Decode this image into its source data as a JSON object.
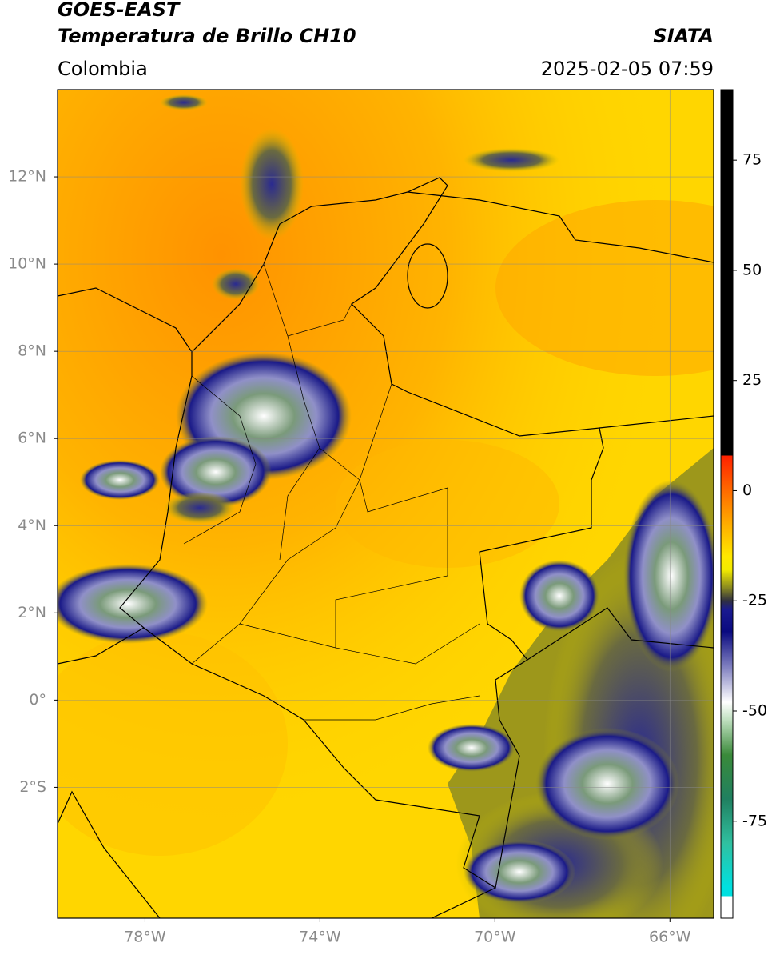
{
  "header": {
    "satellite": "GOES-EAST",
    "product": "Temperatura de Brillo CH10",
    "agency": "SIATA",
    "region": "Colombia",
    "timestamp": "2025-02-05 07:59"
  },
  "map": {
    "xlim": [
      -80,
      -65
    ],
    "ylim": [
      -5,
      14
    ],
    "xticks": [
      {
        "value": -78,
        "label": "78°W"
      },
      {
        "value": -74,
        "label": "74°W"
      },
      {
        "value": -70,
        "label": "70°W"
      },
      {
        "value": -66,
        "label": "66°W"
      }
    ],
    "yticks": [
      {
        "value": 12,
        "label": "12°N"
      },
      {
        "value": 10,
        "label": "10°N"
      },
      {
        "value": 8,
        "label": "8°N"
      },
      {
        "value": 6,
        "label": "6°N"
      },
      {
        "value": 4,
        "label": "4°N"
      },
      {
        "value": 2,
        "label": "2°N"
      },
      {
        "value": 0,
        "label": "0°"
      },
      {
        "value": -2,
        "label": "2°S"
      }
    ],
    "grid": true
  },
  "colorbar": {
    "clim": [
      -97,
      91
    ],
    "ticks": [
      75,
      50,
      25,
      0,
      -25,
      -50,
      -75
    ],
    "stops": [
      {
        "value": 91,
        "color": "#000000"
      },
      {
        "value": 8,
        "color": "#000000"
      },
      {
        "value": 8,
        "color": "#ff2000"
      },
      {
        "value": 0,
        "color": "#ff6a00"
      },
      {
        "value": -8,
        "color": "#ffb000"
      },
      {
        "value": -15,
        "color": "#ffe800"
      },
      {
        "value": -18,
        "color": "#f2ea00"
      },
      {
        "value": -22,
        "color": "#8a8a20"
      },
      {
        "value": -25,
        "color": "#303040"
      },
      {
        "value": -27,
        "color": "#1a1a90"
      },
      {
        "value": -32,
        "color": "#0a0a80"
      },
      {
        "value": -40,
        "color": "#8080c0"
      },
      {
        "value": -48,
        "color": "#ffffff"
      },
      {
        "value": -52,
        "color": "#c0e0c0"
      },
      {
        "value": -60,
        "color": "#3a8a3a"
      },
      {
        "value": -70,
        "color": "#208060"
      },
      {
        "value": -80,
        "color": "#30c0a0"
      },
      {
        "value": -90,
        "color": "#00e0e0"
      },
      {
        "value": -92,
        "color": "#00e0e0"
      },
      {
        "value": -92,
        "color": "#ffffff"
      },
      {
        "value": -97,
        "color": "#ffffff"
      }
    ]
  }
}
